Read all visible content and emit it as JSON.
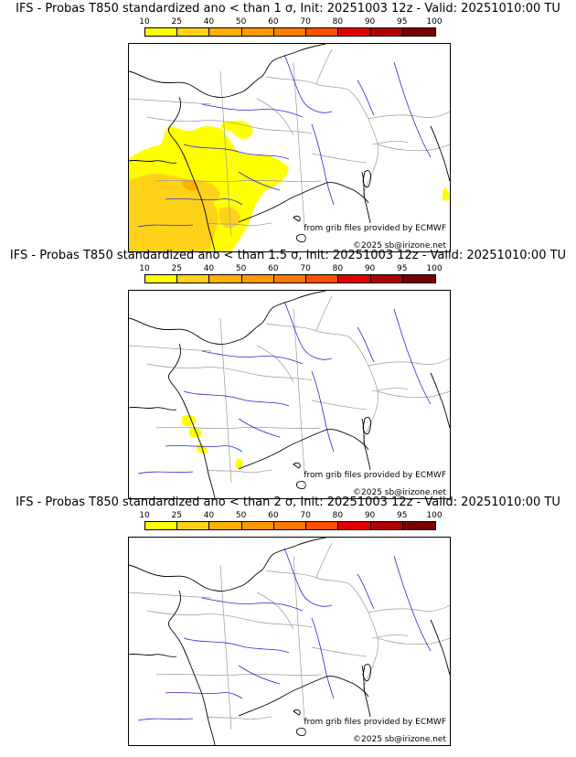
{
  "colorbar": {
    "labels": [
      "10",
      "25",
      "40",
      "50",
      "60",
      "70",
      "80",
      "90",
      "95",
      "100"
    ],
    "colors": [
      "#ffff00",
      "#ffd21a",
      "#ffb000",
      "#ff9900",
      "#ff7a00",
      "#ff5000",
      "#e00000",
      "#b00000",
      "#7a0000"
    ]
  },
  "panels": [
    {
      "title": "IFS - Probas T850  standardized ano < than 1 σ, Init: 20251003 12z - Valid: 20251010:00 TU",
      "credit_source": "from grib files provided by ECMWF",
      "credit_author": "©2025 sb@irizone.net"
    },
    {
      "title": "IFS - Probas T850  standardized ano < than 1.5 σ, Init: 20251003 12z - Valid: 20251010:00 TU",
      "credit_source": "from grib files provided by ECMWF",
      "credit_author": "©2025 sb@irizone.net"
    },
    {
      "title": "IFS - Probas T850  standardized ano < than 2 σ, Init: 20251003 12z - Valid: 20251010:00 TU",
      "credit_source": "from grib files provided by ECMWF",
      "credit_author": "©2025 sb@irizone.net"
    }
  ],
  "colors": {
    "coast": "#000000",
    "border": "#9a9a9a",
    "river": "#2a2ad6"
  }
}
